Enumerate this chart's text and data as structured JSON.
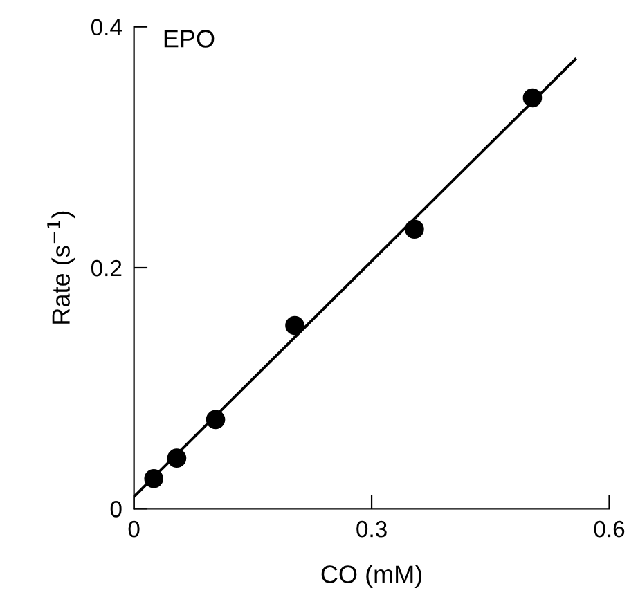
{
  "chart_data": {
    "type": "scatter",
    "xlabel": "CO (mM)",
    "ylabel": "Rate (s$^{−1}$)",
    "annotations": [
      "EPO"
    ],
    "xlim": [
      0,
      0.6
    ],
    "ylim": [
      0,
      0.4
    ],
    "xticks": [
      0,
      0.3,
      0.6
    ],
    "yticks": [
      0,
      0.2,
      0.4
    ],
    "grid": false,
    "series": [
      {
        "color": "#000000",
        "marker": "circle",
        "x": [
          0.025,
          0.054,
          0.103,
          0.203,
          0.354,
          0.503
        ],
        "values": [
          0.025,
          0.042,
          0.074,
          0.152,
          0.232,
          0.341
        ]
      },
      {
        "type": "line",
        "color": "#000000",
        "marker": "none",
        "x": [
          0,
          0.557
        ],
        "values": [
          0.01,
          0.373
        ]
      }
    ]
  }
}
